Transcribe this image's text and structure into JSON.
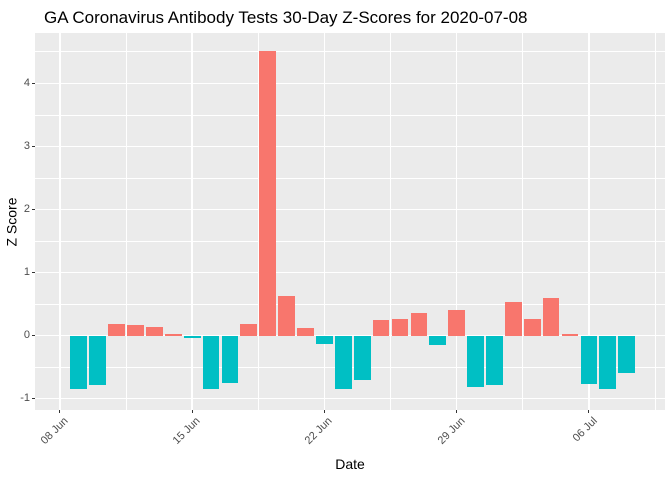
{
  "chart_data": {
    "type": "bar",
    "title": "GA Coronavirus Antibody Tests 30-Day Z-Scores for 2020-07-08",
    "xlabel": "Date",
    "ylabel": "Z Score",
    "x_unit": "days since 2020-06-08",
    "bars": [
      {
        "date": "2020-06-09",
        "day": 1,
        "z": -0.85
      },
      {
        "date": "2020-06-10",
        "day": 2,
        "z": -0.78
      },
      {
        "date": "2020-06-11",
        "day": 3,
        "z": 0.19
      },
      {
        "date": "2020-06-12",
        "day": 4,
        "z": 0.17
      },
      {
        "date": "2020-06-13",
        "day": 5,
        "z": 0.14
      },
      {
        "date": "2020-06-14",
        "day": 6,
        "z": 0.03
      },
      {
        "date": "2020-06-15",
        "day": 7,
        "z": -0.04
      },
      {
        "date": "2020-06-16",
        "day": 8,
        "z": -0.84
      },
      {
        "date": "2020-06-17",
        "day": 9,
        "z": -0.76
      },
      {
        "date": "2020-06-18",
        "day": 10,
        "z": 0.19
      },
      {
        "date": "2020-06-19",
        "day": 11,
        "z": 4.52
      },
      {
        "date": "2020-06-20",
        "day": 12,
        "z": 0.63
      },
      {
        "date": "2020-06-21",
        "day": 13,
        "z": 0.12
      },
      {
        "date": "2020-06-22",
        "day": 14,
        "z": -0.13
      },
      {
        "date": "2020-06-23",
        "day": 15,
        "z": -0.84
      },
      {
        "date": "2020-06-24",
        "day": 16,
        "z": -0.71
      },
      {
        "date": "2020-06-25",
        "day": 17,
        "z": 0.25
      },
      {
        "date": "2020-06-26",
        "day": 18,
        "z": 0.26
      },
      {
        "date": "2020-06-27",
        "day": 19,
        "z": 0.36
      },
      {
        "date": "2020-06-28",
        "day": 20,
        "z": -0.15
      },
      {
        "date": "2020-06-29",
        "day": 21,
        "z": 0.4
      },
      {
        "date": "2020-06-30",
        "day": 22,
        "z": -0.82
      },
      {
        "date": "2020-07-01",
        "day": 23,
        "z": -0.78
      },
      {
        "date": "2020-07-02",
        "day": 24,
        "z": 0.53
      },
      {
        "date": "2020-07-03",
        "day": 25,
        "z": 0.27
      },
      {
        "date": "2020-07-04",
        "day": 26,
        "z": 0.59
      },
      {
        "date": "2020-07-05",
        "day": 27,
        "z": 0.03
      },
      {
        "date": "2020-07-06",
        "day": 28,
        "z": -0.77
      },
      {
        "date": "2020-07-07",
        "day": 29,
        "z": -0.85
      },
      {
        "date": "2020-07-08",
        "day": 30,
        "z": -0.6
      }
    ],
    "x_ticks": [
      {
        "label": "08 Jun",
        "day": 0
      },
      {
        "label": "15 Jun",
        "day": 7
      },
      {
        "label": "22 Jun",
        "day": 14
      },
      {
        "label": "29 Jun",
        "day": 21
      },
      {
        "label": "06 Jul",
        "day": 28
      }
    ],
    "x_minor_days": [
      3.5,
      10.5,
      17.5,
      24.5,
      31.5
    ],
    "y_ticks": [
      -1,
      0,
      1,
      2,
      3,
      4
    ],
    "y_minor": [
      -0.5,
      0.5,
      1.5,
      2.5,
      3.5,
      4.5
    ],
    "xlim_days": [
      -1.32,
      32.03
    ],
    "ylim": [
      -1.18,
      4.8
    ],
    "grid": true,
    "legend": "none",
    "colors": {
      "positive": "#F8766D",
      "negative": "#00BFC4",
      "panel_bg": "#EBEBEB",
      "grid": "#FFFFFF",
      "tick_label": "#4D4D4D",
      "tick_mark": "#333333",
      "text": "#000000"
    }
  }
}
